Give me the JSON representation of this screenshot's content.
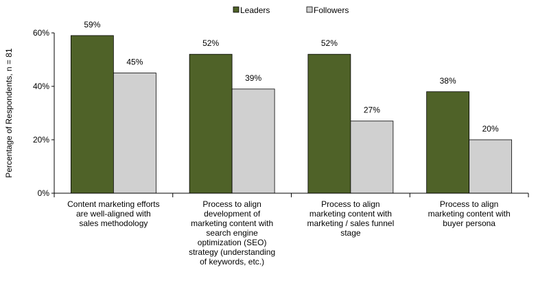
{
  "chart_data": {
    "type": "bar",
    "categories": [
      [
        "Content marketing efforts",
        "are well-aligned with",
        "sales methodology"
      ],
      [
        "Process to align",
        "development of",
        "marketing content with",
        "search engine",
        "optimization (SEO)",
        "strategy (understanding",
        "of keywords, etc.)"
      ],
      [
        "Process to align",
        "marketing content with",
        "marketing / sales funnel",
        "stage"
      ],
      [
        "Process to align",
        "marketing content with",
        "buyer persona"
      ]
    ],
    "series": [
      {
        "name": "Leaders",
        "values": [
          59,
          52,
          52,
          38
        ],
        "color": "#4f6228"
      },
      {
        "name": "Followers",
        "values": [
          45,
          39,
          27,
          20
        ],
        "color": "#d0d0d0"
      }
    ],
    "value_suffix": "%",
    "ylabel": "Percentage of Respondents, n = 81",
    "ylim": [
      0,
      60
    ],
    "yticks": [
      0,
      20,
      40,
      60
    ],
    "grid": false,
    "legend_position": "top-center"
  }
}
